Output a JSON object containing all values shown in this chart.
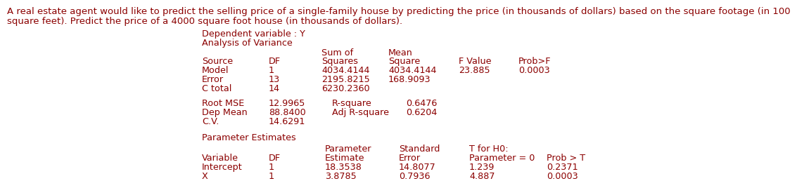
{
  "title_line1": "A real estate agent would like to predict the selling price of a single-family house by predicting the price (in thousands of dollars) based on the square footage (in 100",
  "title_line2": "square feet). Predict the price of a 4000 square foot house (in thousands of dollars).",
  "dep_var_label": "Dependent variable : Y",
  "anova_label": "Analysis of Variance",
  "anova_rows": [
    [
      "Model",
      "1",
      "4034.4144",
      "4034.4144",
      "23.885",
      "0.0003"
    ],
    [
      "Error",
      "13",
      "2195.8215",
      "168.9093",
      "",
      ""
    ],
    [
      "C total",
      "14",
      "6230.2360",
      "",
      "",
      ""
    ]
  ],
  "fit_stats": [
    [
      "Root MSE",
      "12.9965",
      "R-square",
      "0.6476"
    ],
    [
      "Dep Mean",
      "88.8400",
      "Adj R-square",
      "0.6204"
    ],
    [
      "C.V.",
      "14.6291",
      "",
      ""
    ]
  ],
  "param_est_label": "Parameter Estimates",
  "param_rows": [
    [
      "Intercept",
      "1",
      "18.3538",
      "14.8077",
      "1.239",
      "0.2371"
    ],
    [
      "X",
      "1",
      "3.8785",
      "0.7936",
      "4.887",
      "0.0003"
    ]
  ],
  "text_color": "#8B0000",
  "bg_color": "#ffffff",
  "font_size": 9.2,
  "title_font_size": 9.5
}
